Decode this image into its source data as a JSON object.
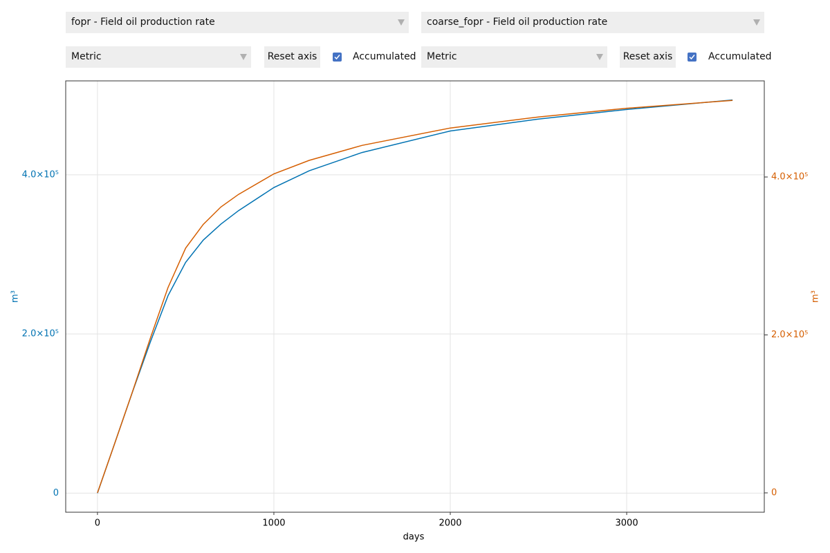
{
  "controls": {
    "left": {
      "variable": "fopr - Field oil production rate",
      "units": "Metric",
      "reset": "Reset axis",
      "accumulated": {
        "label": "Accumulated",
        "checked": true
      }
    },
    "right": {
      "variable": "coarse_fopr - Field oil production rate",
      "units": "Metric",
      "reset": "Reset axis",
      "accumulated": {
        "label": "Accumulated",
        "checked": true
      }
    }
  },
  "chart_data": {
    "type": "line",
    "xlabel": "days",
    "ylabel": "m³",
    "y2label": "m³",
    "x": [
      0,
      100,
      200,
      300,
      400,
      500,
      600,
      700,
      800,
      1000,
      1200,
      1500,
      2000,
      2500,
      3000,
      3600
    ],
    "series": [
      {
        "color": "#0072b2",
        "values": [
          0,
          64000,
          128000,
          190000,
          248000,
          290000,
          318000,
          338000,
          355000,
          384000,
          405000,
          428000,
          455000,
          470000,
          482000,
          494000
        ]
      },
      {
        "color": "#d55e00",
        "axis": "y2",
        "values": [
          0,
          64000,
          129000,
          196000,
          260000,
          310000,
          340000,
          362000,
          378000,
          404000,
          421000,
          440000,
          462000,
          476000,
          487000,
          497000
        ]
      }
    ],
    "xlim": [
      -180,
      3780
    ],
    "xticks": [
      0,
      1000,
      2000,
      3000
    ],
    "ylim": [
      -24000,
      518000
    ],
    "yticks": [
      0,
      {
        "value": 200000,
        "label": "2.0×10⁵"
      },
      {
        "value": 400000,
        "label": "4.0×10⁵"
      }
    ],
    "y2lim": [
      -24500,
      521700
    ],
    "y2ticks": [
      0,
      {
        "value": 200000,
        "label": "2.0×10⁵"
      },
      {
        "value": 400000,
        "label": "4.0×10⁵"
      }
    ],
    "grid": true
  }
}
